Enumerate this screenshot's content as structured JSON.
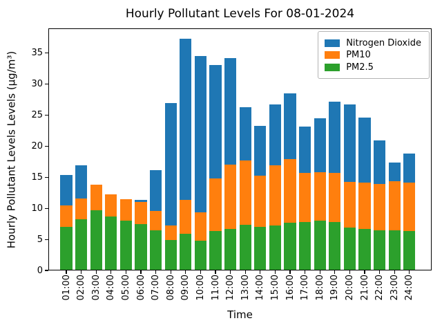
{
  "figure": {
    "title": "Hourly Pollutant Levels For 08-01-2024"
  },
  "chart_data": {
    "type": "bar",
    "stacked": true,
    "title": "Hourly Pollutant Levels For 08-01-2024",
    "xlabel": "Time",
    "ylabel": "Hourly Pollutant Levels Levels (μg/m³)",
    "categories": [
      "01:00",
      "02:00",
      "03:00",
      "04:00",
      "05:00",
      "06:00",
      "07:00",
      "08:00",
      "09:00",
      "10:00",
      "11:00",
      "12:00",
      "13:00",
      "14:00",
      "15:00",
      "16:00",
      "17:00",
      "18:00",
      "19:00",
      "20:00",
      "21:00",
      "22:00",
      "23:00",
      "24:00"
    ],
    "series": [
      {
        "name": "Nitrogen Dioxide",
        "color": "#1f77b4",
        "values": [
          4.9,
          5.3,
          0.0,
          0.0,
          0.0,
          0.4,
          6.6,
          19.7,
          25.9,
          25.2,
          18.3,
          17.2,
          8.6,
          8.0,
          9.9,
          10.6,
          7.5,
          8.7,
          11.5,
          12.5,
          10.5,
          7.1,
          3.0,
          4.7
        ]
      },
      {
        "name": "PM10",
        "color": "#ff7f0e",
        "values": [
          3.5,
          3.4,
          4.1,
          3.6,
          3.5,
          3.5,
          3.1,
          2.4,
          5.5,
          4.6,
          8.5,
          10.3,
          10.3,
          8.3,
          9.7,
          10.2,
          7.9,
          7.8,
          7.9,
          7.4,
          7.4,
          7.4,
          7.9,
          7.7
        ]
      },
      {
        "name": "PM2.5",
        "color": "#2ca02c",
        "values": [
          7.0,
          8.2,
          9.7,
          8.7,
          8.0,
          7.5,
          6.5,
          4.9,
          5.9,
          4.8,
          6.3,
          6.7,
          7.4,
          7.0,
          7.2,
          7.7,
          7.8,
          8.0,
          7.8,
          6.9,
          6.7,
          6.5,
          6.5,
          6.4
        ]
      }
    ],
    "totals": [
      15.4,
      16.9,
      13.8,
      12.3,
      11.5,
      11.4,
      16.2,
      27.0,
      37.3,
      34.6,
      33.1,
      34.2,
      26.3,
      23.3,
      26.8,
      28.5,
      23.2,
      24.5,
      27.2,
      26.8,
      24.6,
      21.0,
      17.4,
      18.8
    ],
    "ylim": [
      0,
      39
    ],
    "yticks": [
      0,
      5,
      10,
      15,
      20,
      25,
      30,
      35
    ],
    "legend_position": "upper right",
    "grid": false
  }
}
